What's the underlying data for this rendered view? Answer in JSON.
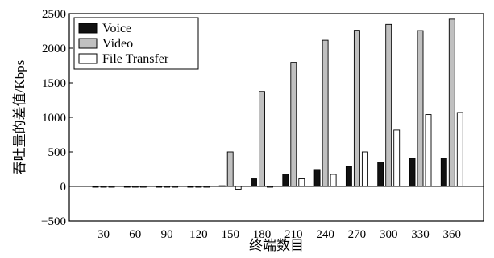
{
  "chart_data": {
    "type": "bar",
    "title": "",
    "xlabel": "终端数目",
    "ylabel": "吞吐量的差值/Kbps",
    "categories": [
      "30",
      "60",
      "90",
      "120",
      "150",
      "180",
      "210",
      "240",
      "270",
      "300",
      "330",
      "360"
    ],
    "series": [
      {
        "name": "Voice",
        "color": "#111111",
        "values": [
          0,
          0,
          0,
          0,
          10,
          110,
          180,
          245,
          290,
          355,
          405,
          410
        ]
      },
      {
        "name": "Video",
        "color": "#c0c0c0",
        "values": [
          0,
          0,
          0,
          0,
          500,
          1375,
          1795,
          2115,
          2260,
          2345,
          2255,
          2420
        ]
      },
      {
        "name": "File Transfer",
        "color": "#ffffff",
        "values": [
          0,
          0,
          0,
          0,
          -40,
          -10,
          110,
          175,
          500,
          815,
          1040,
          1070
        ]
      }
    ],
    "ylim": [
      -500,
      2500
    ],
    "yticks": [
      -500,
      0,
      500,
      1000,
      1500,
      2000,
      2500
    ],
    "grid": false,
    "legend": "top-left"
  }
}
